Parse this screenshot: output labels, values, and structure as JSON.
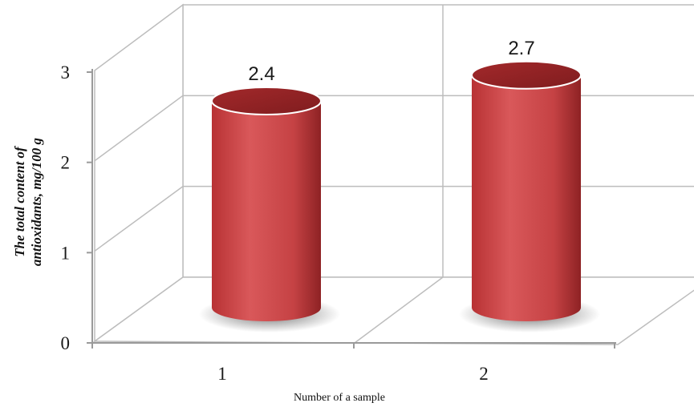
{
  "chart_data": {
    "type": "bar",
    "categories": [
      "1",
      "2"
    ],
    "values": [
      2.4,
      2.7
    ],
    "data_labels": [
      "2.4",
      "2.7"
    ],
    "title": "",
    "xlabel": "Number of a sample",
    "ylabel_lines": [
      "The total content of",
      "antioxidants, mg/100 g"
    ],
    "y_ticks": [
      "0",
      "1",
      "2",
      "3"
    ],
    "ylim": [
      0,
      3
    ],
    "style": "3d-cylinder",
    "grid": true,
    "legend": "none",
    "bar_color": "#c0393b"
  }
}
